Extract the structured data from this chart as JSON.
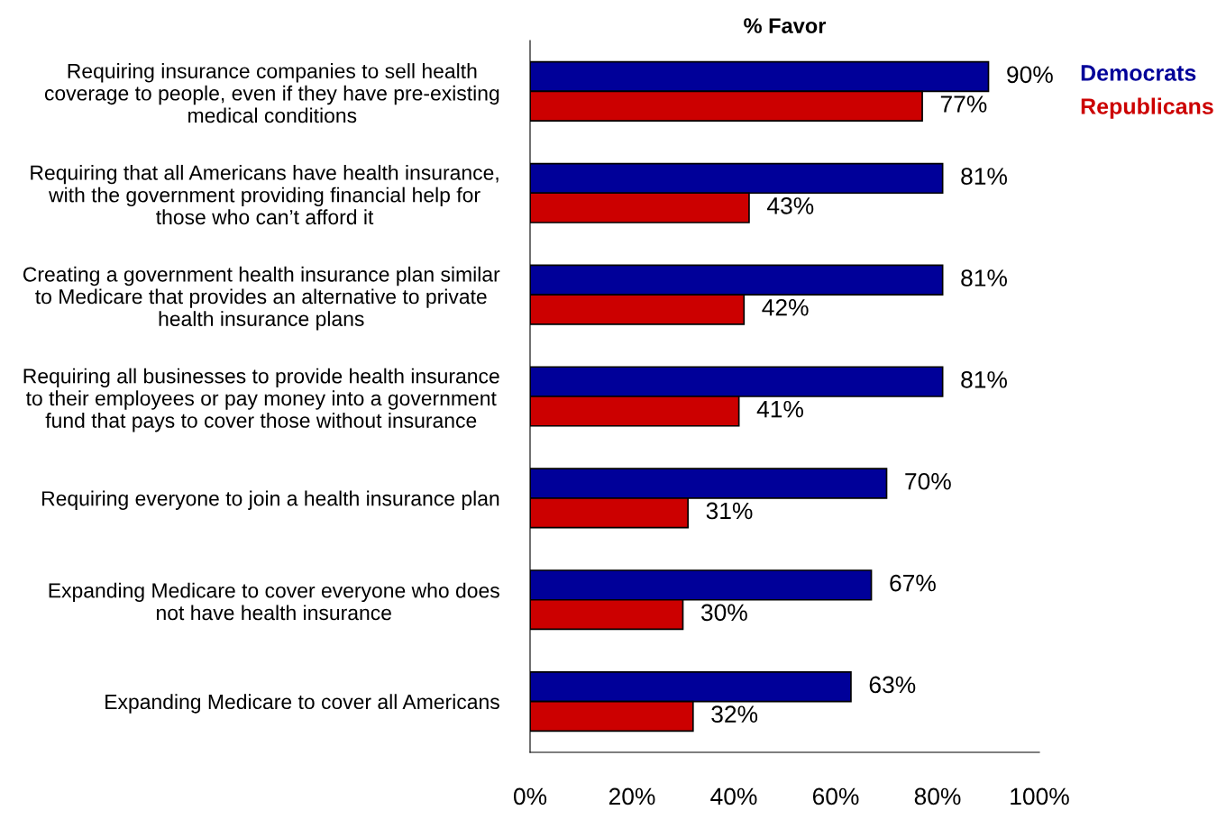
{
  "chart_data": {
    "type": "bar",
    "orientation": "horizontal",
    "title": "% Favor",
    "categories": [
      "Requiring insurance companies to sell health\ncoverage to people, even if they have pre-existing\nmedical conditions",
      "Requiring that all Americans have health insurance,\nwith the government providing financial help for\nthose who can’t afford it",
      "Creating a government health insurance plan similar\nto Medicare that provides an alternative to private\nhealth insurance plans",
      "Requiring all businesses to provide health insurance\nto their employees or pay money into a government\nfund that pays to cover those without insurance",
      "Requiring everyone to join a health insurance plan",
      "Expanding Medicare to cover everyone who does\nnot have health insurance",
      "Expanding Medicare to cover all Americans"
    ],
    "series": [
      {
        "name": "Democrats",
        "color": "#000099",
        "values": [
          90,
          81,
          81,
          81,
          70,
          67,
          63
        ],
        "value_labels": [
          "90%",
          "81%",
          "81%",
          "81%",
          "70%",
          "67%",
          "63%"
        ]
      },
      {
        "name": "Republicans",
        "color": "#cc0000",
        "values": [
          77,
          43,
          42,
          41,
          31,
          30,
          32
        ],
        "value_labels": [
          "77%",
          "43%",
          "42%",
          "41%",
          "31%",
          "30%",
          "32%"
        ]
      }
    ],
    "xlim": [
      0,
      100
    ],
    "xticks": [
      {
        "value": 0,
        "label": "0%"
      },
      {
        "value": 20,
        "label": "20%"
      },
      {
        "value": 40,
        "label": "40%"
      },
      {
        "value": 60,
        "label": "60%"
      },
      {
        "value": 80,
        "label": "80%"
      },
      {
        "value": 100,
        "label": "100%"
      }
    ],
    "legend": "top right",
    "grid": false
  }
}
